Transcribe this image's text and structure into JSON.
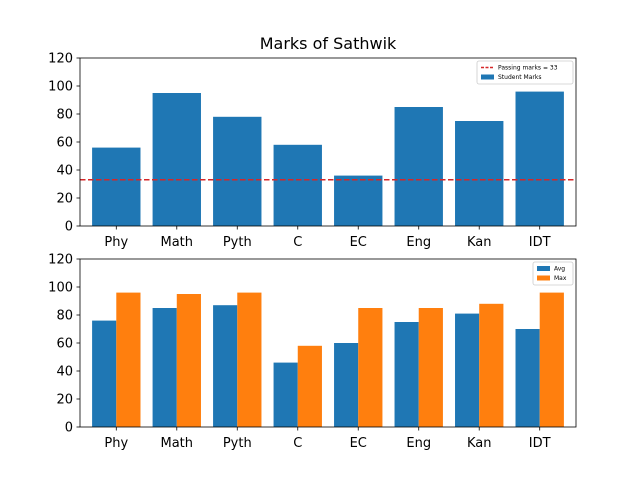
{
  "chart_data": [
    {
      "type": "bar",
      "title": "Marks of Sathwik",
      "xlabel": "",
      "ylabel": "",
      "categories": [
        "Phy",
        "Math",
        "Pyth",
        "C",
        "EC",
        "Eng",
        "Kan",
        "IDT"
      ],
      "series": [
        {
          "name": "Student Marks",
          "values": [
            56,
            95,
            78,
            58,
            36,
            85,
            75,
            96
          ],
          "color": "#1f77b4"
        }
      ],
      "reference_line": {
        "label": "Passing marks = 33",
        "value": 33,
        "color": "#d62728",
        "style": "dashed"
      },
      "ylim": [
        0,
        120
      ],
      "yticks": [
        0,
        20,
        40,
        60,
        80,
        100,
        120
      ],
      "legend": "top-right",
      "grid": false
    },
    {
      "type": "bar",
      "title": "",
      "xlabel": "",
      "ylabel": "",
      "categories": [
        "Phy",
        "Math",
        "Pyth",
        "C",
        "EC",
        "Eng",
        "Kan",
        "IDT"
      ],
      "series": [
        {
          "name": "Avg",
          "values": [
            76,
            85,
            87,
            46,
            60,
            75,
            81,
            70
          ],
          "color": "#1f77b4"
        },
        {
          "name": "Max",
          "values": [
            96,
            95,
            96,
            58,
            85,
            85,
            88,
            96
          ],
          "color": "#ff7f0e"
        }
      ],
      "ylim": [
        0,
        120
      ],
      "yticks": [
        0,
        20,
        40,
        60,
        80,
        100,
        120
      ],
      "legend": "top-right",
      "grid": false
    }
  ]
}
